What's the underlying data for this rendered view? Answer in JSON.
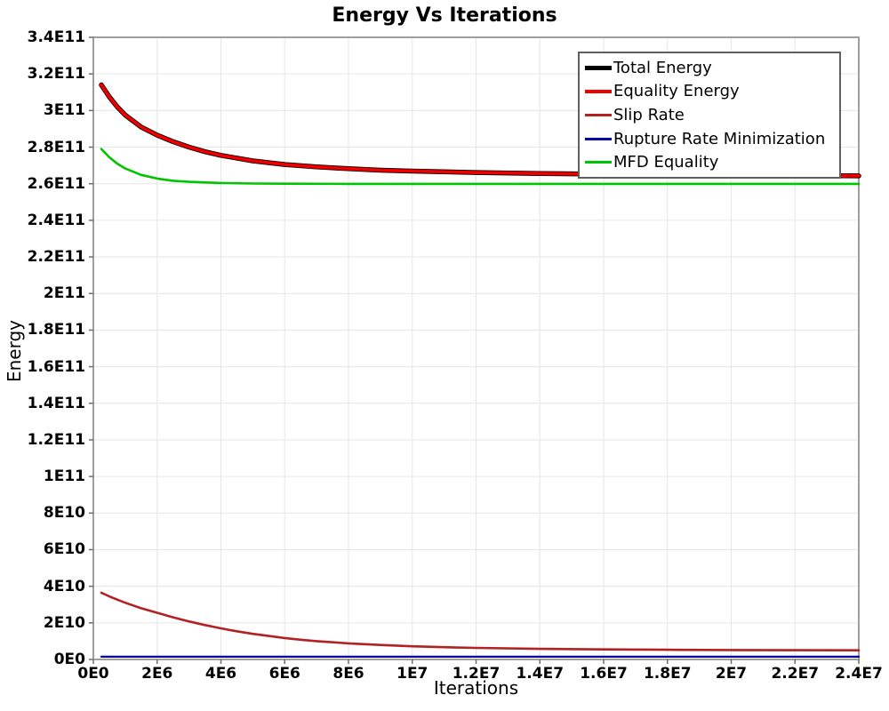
{
  "chart_data": {
    "type": "line",
    "title": "Energy Vs Iterations",
    "xlabel": "Iterations",
    "ylabel": "Energy",
    "xlim": [
      0,
      24000000
    ],
    "ylim": [
      0,
      340000000000
    ],
    "grid": true,
    "legend_position": "top-right",
    "x_ticks": [
      {
        "value": 0,
        "label": "0E0"
      },
      {
        "value": 2000000,
        "label": "2E6"
      },
      {
        "value": 4000000,
        "label": "4E6"
      },
      {
        "value": 6000000,
        "label": "6E6"
      },
      {
        "value": 8000000,
        "label": "8E6"
      },
      {
        "value": 10000000,
        "label": "1E7"
      },
      {
        "value": 12000000,
        "label": "1.2E7"
      },
      {
        "value": 14000000,
        "label": "1.4E7"
      },
      {
        "value": 16000000,
        "label": "1.6E7"
      },
      {
        "value": 18000000,
        "label": "1.8E7"
      },
      {
        "value": 20000000,
        "label": "2E7"
      },
      {
        "value": 22000000,
        "label": "2.2E7"
      },
      {
        "value": 24000000,
        "label": "2.4E7"
      }
    ],
    "y_ticks": [
      {
        "value": 0,
        "label": "0E0"
      },
      {
        "value": 20000000000,
        "label": "2E10"
      },
      {
        "value": 40000000000,
        "label": "4E10"
      },
      {
        "value": 60000000000,
        "label": "6E10"
      },
      {
        "value": 80000000000,
        "label": "8E10"
      },
      {
        "value": 100000000000,
        "label": "1E11"
      },
      {
        "value": 120000000000,
        "label": "1.2E11"
      },
      {
        "value": 140000000000,
        "label": "1.4E11"
      },
      {
        "value": 160000000000,
        "label": "1.6E11"
      },
      {
        "value": 180000000000,
        "label": "1.8E11"
      },
      {
        "value": 200000000000,
        "label": "2E11"
      },
      {
        "value": 220000000000,
        "label": "2.2E11"
      },
      {
        "value": 240000000000,
        "label": "2.4E11"
      },
      {
        "value": 260000000000,
        "label": "2.6E11"
      },
      {
        "value": 280000000000,
        "label": "2.8E11"
      },
      {
        "value": 300000000000,
        "label": "3E11"
      },
      {
        "value": 320000000000,
        "label": "3.2E11"
      },
      {
        "value": 340000000000,
        "label": "3.4E11"
      }
    ],
    "series": [
      {
        "name": "Total Energy",
        "color": "#000000",
        "width": 5.5,
        "points": [
          [
            250000,
            314000000000.0
          ],
          [
            500000,
            307500000000.0
          ],
          [
            750000,
            302000000000.0
          ],
          [
            1000000.0,
            297500000000.0
          ],
          [
            1500000.0,
            291000000000.0
          ],
          [
            2000000.0,
            286500000000.0
          ],
          [
            2500000.0,
            283000000000.0
          ],
          [
            3000000.0,
            280000000000.0
          ],
          [
            3500000.0,
            277500000000.0
          ],
          [
            4000000.0,
            275500000000.0
          ],
          [
            5000000.0,
            272500000000.0
          ],
          [
            6000000.0,
            270500000000.0
          ],
          [
            7000000.0,
            269200000000.0
          ],
          [
            8000000.0,
            268200000000.0
          ],
          [
            9000000.0,
            267400000000.0
          ],
          [
            10000000.0,
            266900000000.0
          ],
          [
            12000000.0,
            266100000000.0
          ],
          [
            14000000.0,
            265600000000.0
          ],
          [
            16000000.0,
            265200000000.0
          ],
          [
            18000000.0,
            264900000000.0
          ],
          [
            20000000.0,
            264700000000.0
          ],
          [
            22000000.0,
            264500000000.0
          ],
          [
            24000000.0,
            264300000000.0
          ]
        ]
      },
      {
        "name": "Equality Energy",
        "color": "#ee0000",
        "width": 3.8,
        "points": [
          [
            250000,
            314000000000.0
          ],
          [
            500000,
            307500000000.0
          ],
          [
            750000,
            302000000000.0
          ],
          [
            1000000.0,
            297500000000.0
          ],
          [
            1500000.0,
            291000000000.0
          ],
          [
            2000000.0,
            286500000000.0
          ],
          [
            2500000.0,
            283000000000.0
          ],
          [
            3000000.0,
            280000000000.0
          ],
          [
            3500000.0,
            277500000000.0
          ],
          [
            4000000.0,
            275500000000.0
          ],
          [
            5000000.0,
            272500000000.0
          ],
          [
            6000000.0,
            270500000000.0
          ],
          [
            7000000.0,
            269200000000.0
          ],
          [
            8000000.0,
            268200000000.0
          ],
          [
            9000000.0,
            267400000000.0
          ],
          [
            10000000.0,
            266900000000.0
          ],
          [
            12000000.0,
            266100000000.0
          ],
          [
            14000000.0,
            265600000000.0
          ],
          [
            16000000.0,
            265200000000.0
          ],
          [
            18000000.0,
            264900000000.0
          ],
          [
            20000000.0,
            264700000000.0
          ],
          [
            22000000.0,
            264500000000.0
          ],
          [
            24000000.0,
            264300000000.0
          ]
        ]
      },
      {
        "name": "Slip Rate",
        "color": "#b22222",
        "width": 2.6,
        "points": [
          [
            250000,
            36500000000.0
          ],
          [
            500000,
            34500000000.0
          ],
          [
            750000,
            32700000000.0
          ],
          [
            1000000.0,
            31000000000.0
          ],
          [
            1500000.0,
            28000000000.0
          ],
          [
            2000000.0,
            25500000000.0
          ],
          [
            2500000.0,
            23000000000.0
          ],
          [
            3000000.0,
            20800000000.0
          ],
          [
            3500000.0,
            18800000000.0
          ],
          [
            4000000.0,
            17000000000.0
          ],
          [
            4500000.0,
            15400000000.0
          ],
          [
            5000000.0,
            14000000000.0
          ],
          [
            5500000.0,
            12800000000.0
          ],
          [
            6000000.0,
            11700000000.0
          ],
          [
            6500000.0,
            10800000000.0
          ],
          [
            7000000.0,
            10000000000.0
          ],
          [
            8000000.0,
            8800000000.0
          ],
          [
            9000000.0,
            7900000000.0
          ],
          [
            10000000.0,
            7200000000.0
          ],
          [
            11000000.0,
            6700000000.0
          ],
          [
            12000000.0,
            6300000000.0
          ],
          [
            14000000.0,
            5800000000.0
          ],
          [
            16000000.0,
            5500000000.0
          ],
          [
            18000000.0,
            5300000000.0
          ],
          [
            20000000.0,
            5150000000.0
          ],
          [
            22000000.0,
            5050000000.0
          ],
          [
            24000000.0,
            5000000000.0
          ]
        ]
      },
      {
        "name": "Rupture Rate Minimization",
        "color": "#0000a0",
        "width": 2.2,
        "points": [
          [
            250000,
            1500000000.0
          ],
          [
            24000000.0,
            1500000000.0
          ]
        ]
      },
      {
        "name": "MFD Equality",
        "color": "#00c400",
        "width": 2.6,
        "points": [
          [
            250000,
            279000000000.0
          ],
          [
            500000,
            274500000000.0
          ],
          [
            750000,
            271000000000.0
          ],
          [
            1000000.0,
            268300000000.0
          ],
          [
            1500000.0,
            264800000000.0
          ],
          [
            2000000.0,
            262800000000.0
          ],
          [
            2500000.0,
            261600000000.0
          ],
          [
            3000000.0,
            261000000000.0
          ],
          [
            4000000.0,
            260400000000.0
          ],
          [
            5000000.0,
            260100000000.0
          ],
          [
            6000000.0,
            260000000000.0
          ],
          [
            8000000.0,
            259900000000.0
          ],
          [
            12000000.0,
            259900000000.0
          ],
          [
            16000000.0,
            259900000000.0
          ],
          [
            20000000.0,
            259900000000.0
          ],
          [
            24000000.0,
            259900000000.0
          ]
        ]
      }
    ]
  },
  "colors": {
    "background": "#ffffff",
    "grid": "#e6e6e6",
    "plot_border": "#9e9e9e",
    "tick": "#6e6e6e",
    "legend_border": "#5f5f5f",
    "text": "#000000"
  }
}
